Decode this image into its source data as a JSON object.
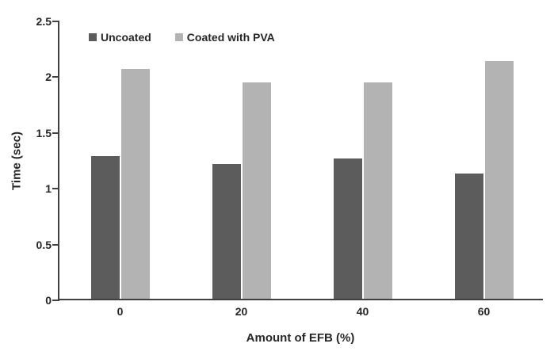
{
  "chart_data": {
    "type": "bar",
    "title": "",
    "xlabel": "Amount of EFB (%)",
    "ylabel": "Time (sec)",
    "categories": [
      "0",
      "20",
      "40",
      "60"
    ],
    "series": [
      {
        "name": "Uncoated",
        "color": "#5c5c5c",
        "values": [
          1.28,
          1.21,
          1.26,
          1.12
        ]
      },
      {
        "name": "Coated with PVA",
        "color": "#b3b3b3",
        "values": [
          2.06,
          1.94,
          1.94,
          2.13
        ]
      }
    ],
    "ylim": [
      0,
      2.5
    ],
    "yticks": [
      "0",
      "0.5",
      "1",
      "1.5",
      "2",
      "2.5"
    ],
    "legend_position": "top-inside",
    "grid": false
  },
  "colors": {
    "axis": "#404040",
    "text": "#262626",
    "background": "#ffffff"
  }
}
